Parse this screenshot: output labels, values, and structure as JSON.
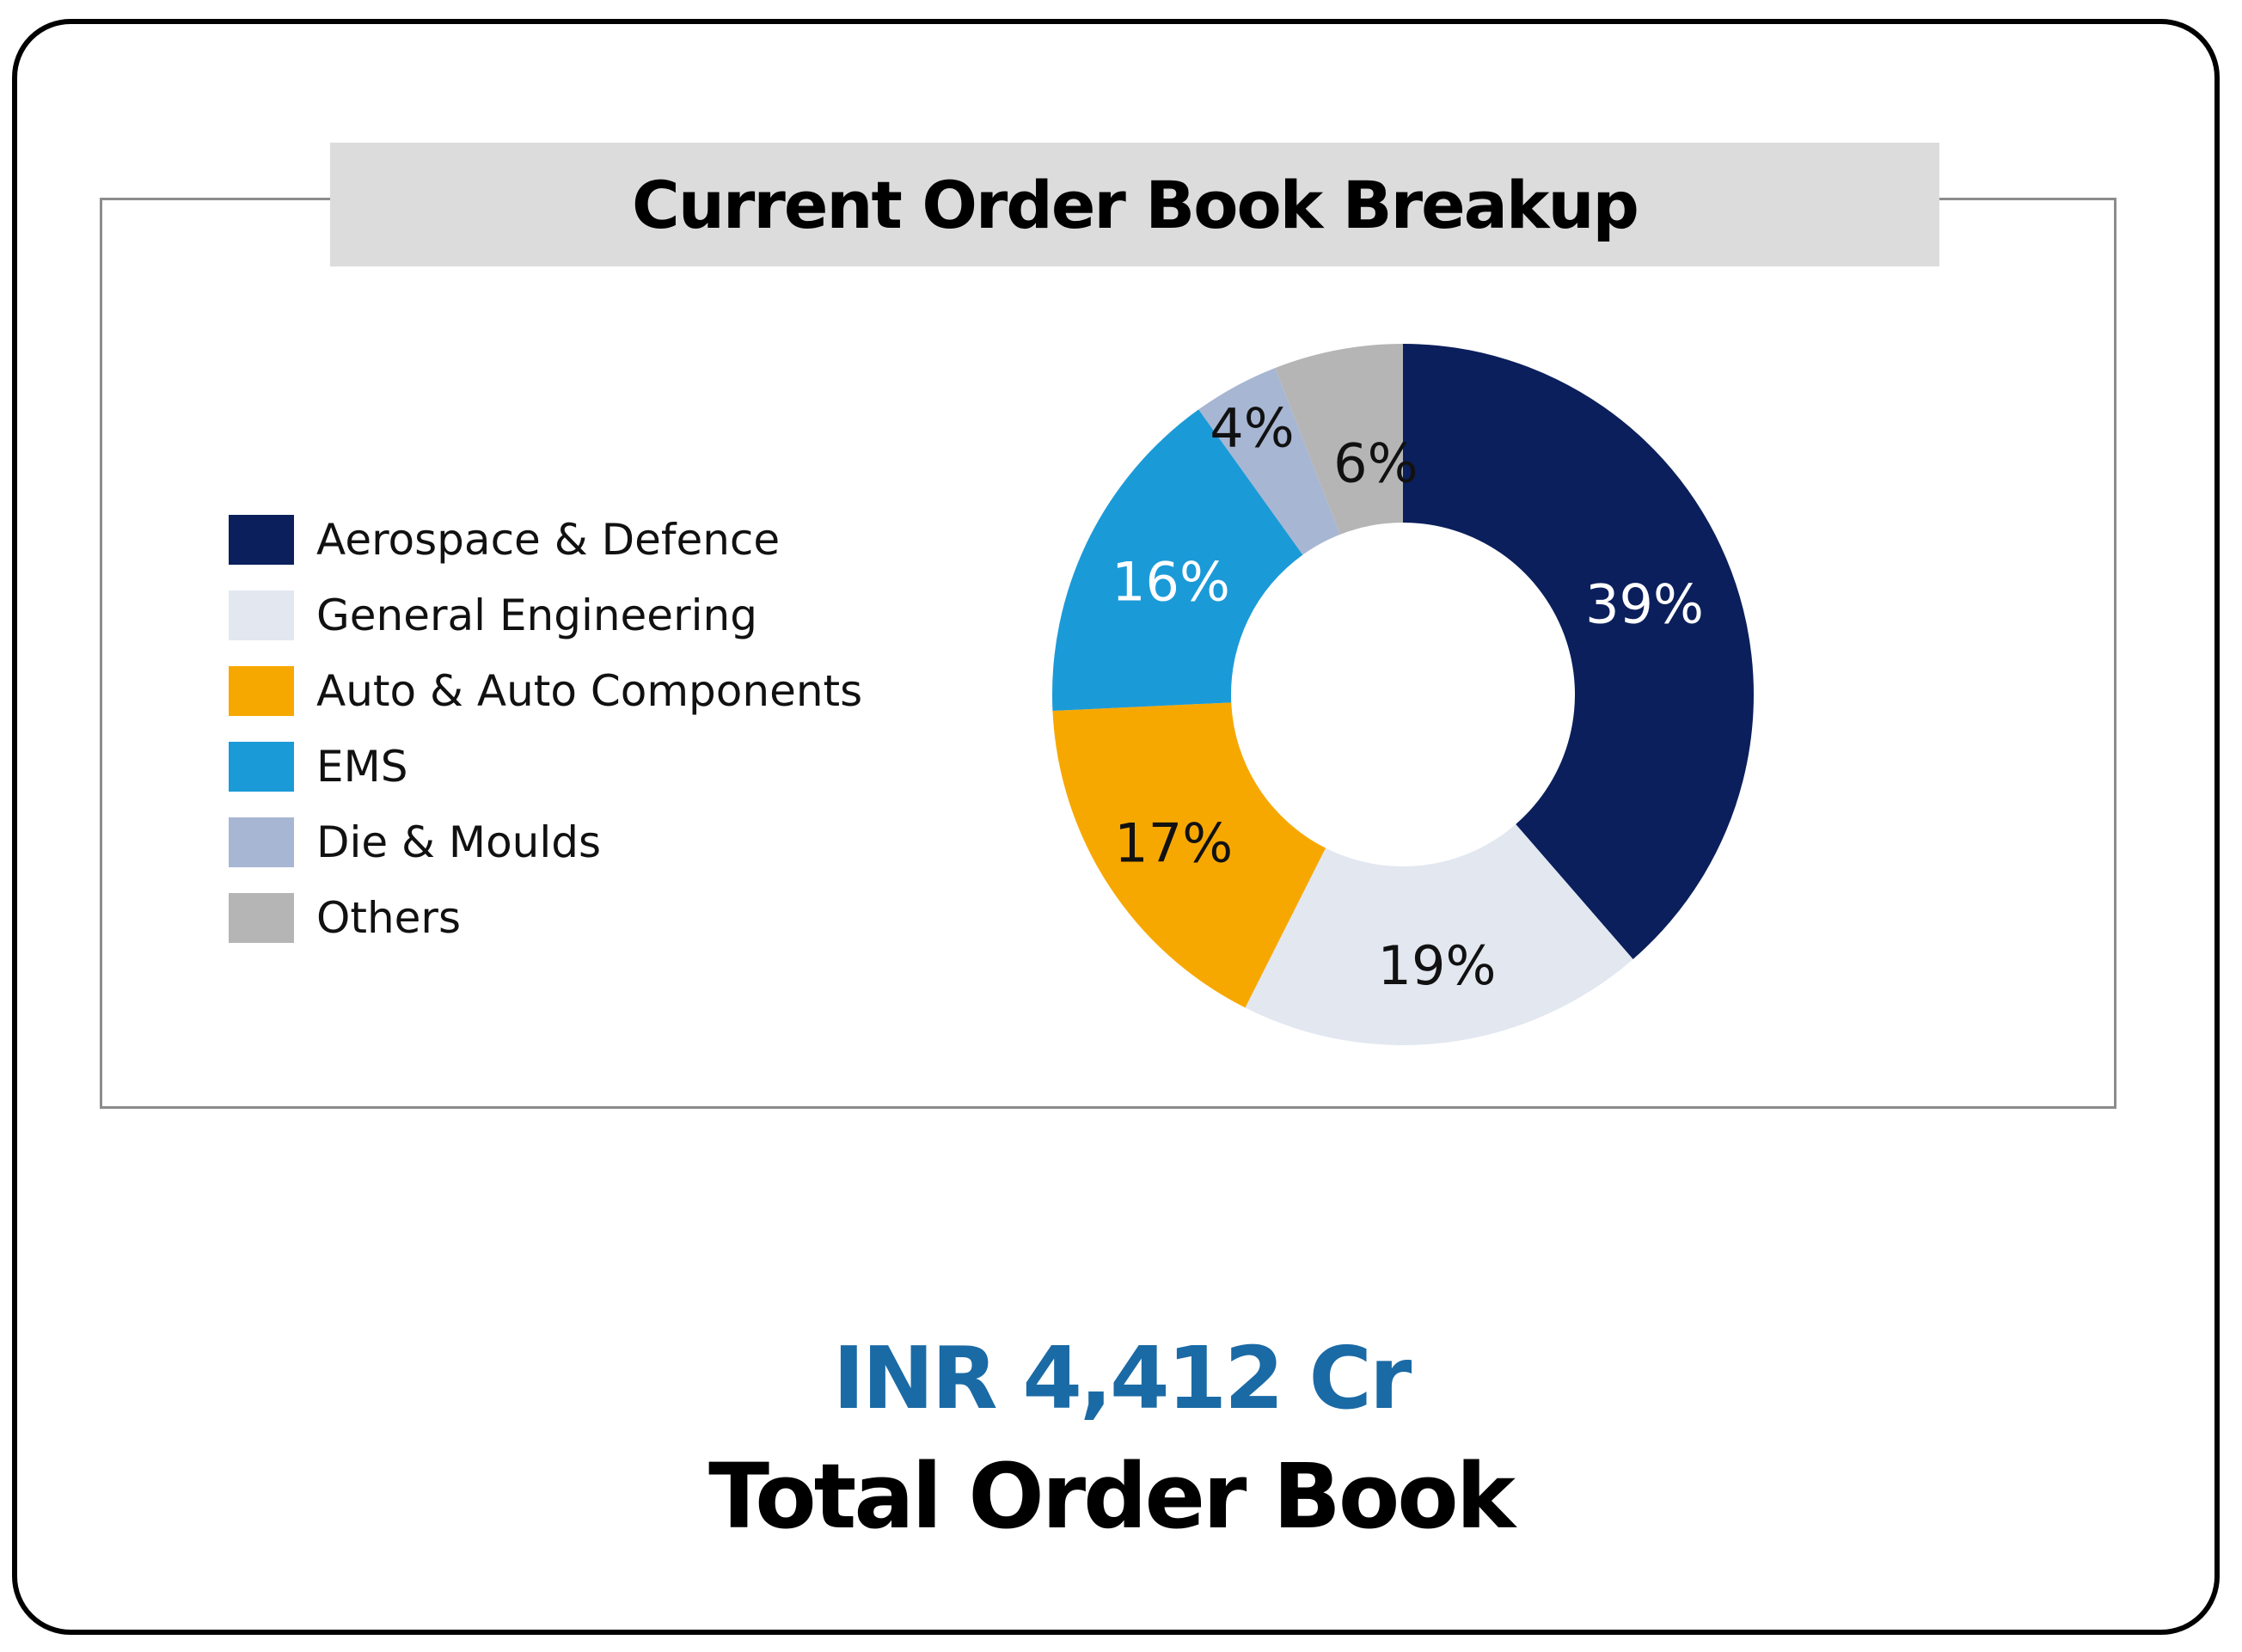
{
  "title": "Current Order Book Breakup",
  "legend": [
    {
      "label": "Aerospace & Defence",
      "color": "#0b1f5c"
    },
    {
      "label": "General Engineering",
      "color": "#e2e7f0"
    },
    {
      "label": "Auto & Auto Components",
      "color": "#f7a800"
    },
    {
      "label": "EMS",
      "color": "#1b9ad8"
    },
    {
      "label": "Die & Moulds",
      "color": "#a7b6d2"
    },
    {
      "label": "Others",
      "color": "#b5b5b5"
    }
  ],
  "total": {
    "value": "INR 4,412 Cr",
    "caption": "Total Order Book",
    "value_color": "#1a6aa5"
  },
  "chart_data": {
    "type": "pie",
    "subtype": "donut",
    "title": "Current Order Book Breakup",
    "categories": [
      "Aerospace & Defence",
      "General Engineering",
      "Auto & Auto Components",
      "EMS",
      "Die & Moulds",
      "Others"
    ],
    "values": [
      39,
      19,
      17,
      16,
      4,
      6
    ],
    "labels": [
      "39%",
      "19%",
      "17%",
      "16%",
      "4%",
      "6%"
    ],
    "colors": [
      "#0b1f5c",
      "#e2e7f0",
      "#f7a800",
      "#1b9ad8",
      "#a7b6d2",
      "#b5b5b5"
    ],
    "label_colors": [
      "#ffffff",
      "#111111",
      "#111111",
      "#ffffff",
      "#111111",
      "#111111"
    ],
    "unit": "%",
    "legend_position": "left",
    "start_angle": "12 o'clock, clockwise"
  }
}
